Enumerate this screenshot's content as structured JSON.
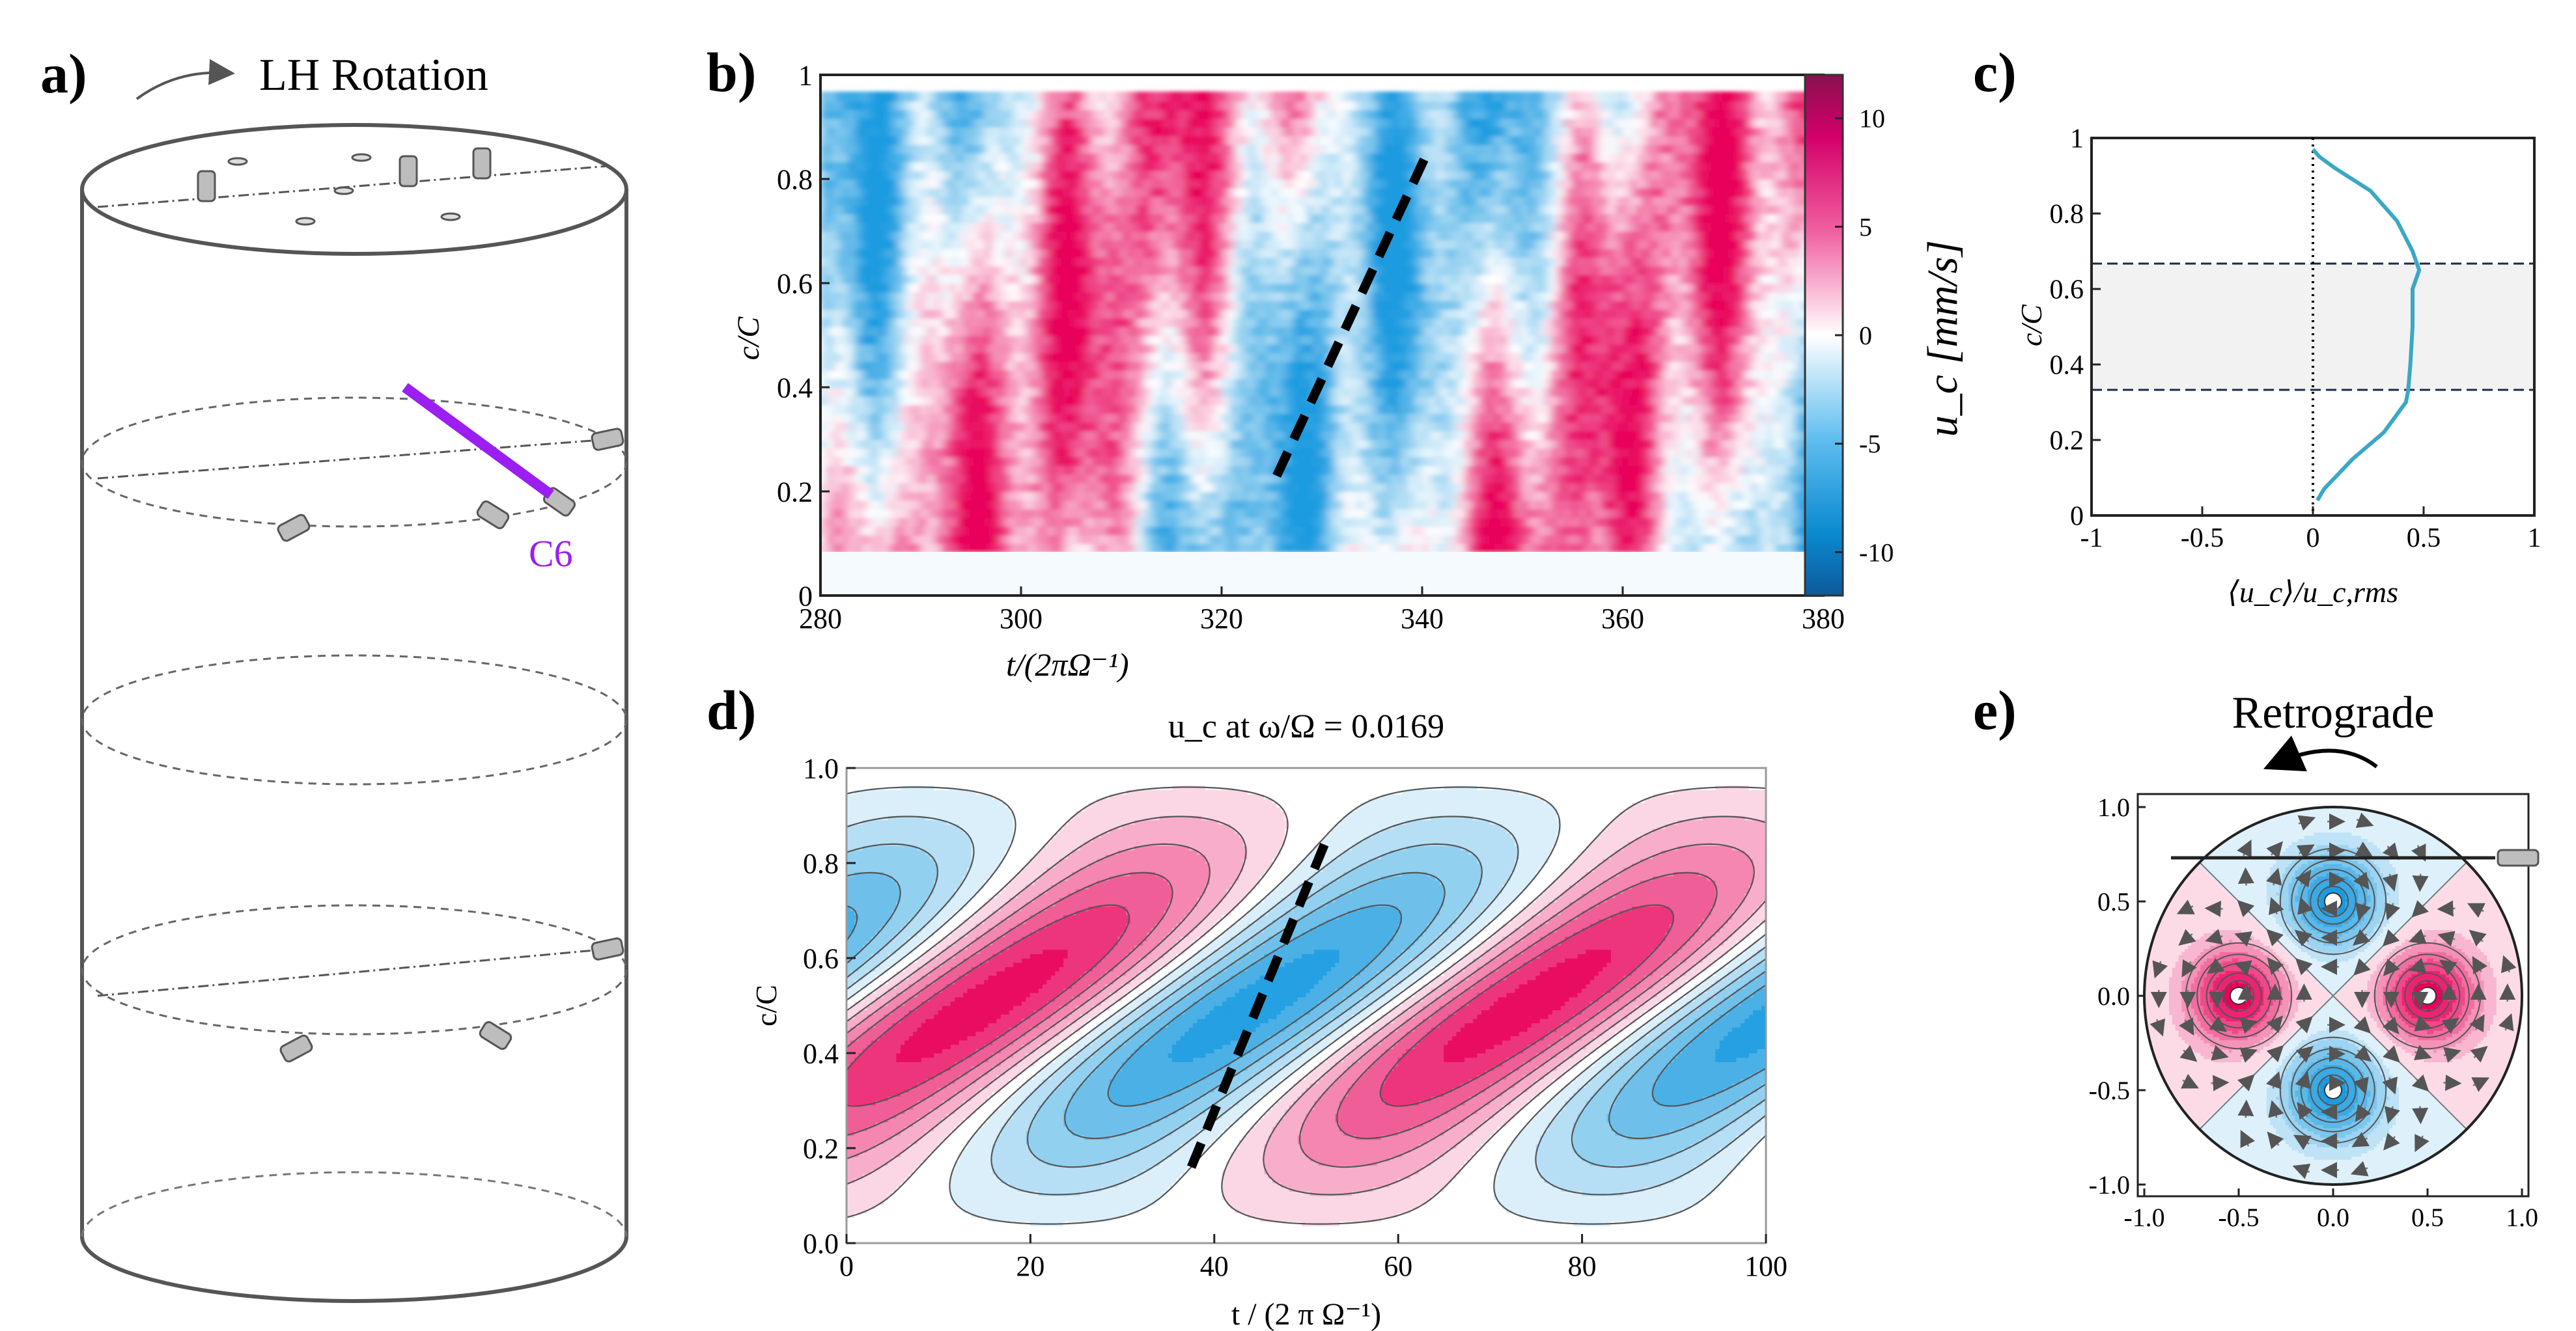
{
  "figure": {
    "panel_a": {
      "letter": "a)",
      "rotation_label": "LH Rotation",
      "probe_label": "C6"
    },
    "panel_b": {
      "letter": "b)",
      "ylabel": "c/C",
      "xlabel": "t/(2πΩ⁻¹)",
      "colorbar_label": "u_c [mm/s]",
      "colorbar_ticks": [
        "10",
        "5",
        "0",
        "-5",
        "-10"
      ]
    },
    "panel_c": {
      "letter": "c)",
      "ylabel": "c/C",
      "xlabel": "⟨u_c⟩/u_c,rms"
    },
    "panel_d": {
      "letter": "d)",
      "title": "u_c at ω/Ω = 0.0169",
      "ylabel": "c/C",
      "xlabel": "t / (2 π Ω⁻¹)"
    },
    "panel_e": {
      "letter": "e)",
      "title": "Retrograde"
    }
  },
  "colors": {
    "positive": "#e8005a",
    "negative": "#1a9be0",
    "probe": "#9b1ff0",
    "line": "#4a4a4a",
    "profile": "#3aa8c4"
  },
  "chart_data": [
    {
      "id": "b",
      "type": "heatmap",
      "x": {
        "label": "t/(2πΩ⁻¹)",
        "range": [
          280,
          380
        ],
        "ticks": [
          280,
          300,
          320,
          340,
          360,
          380
        ]
      },
      "y": {
        "label": "c/C",
        "range": [
          0,
          1
        ],
        "ticks": [
          0,
          0.2,
          0.4,
          0.6,
          0.8,
          1
        ]
      },
      "colorbar": {
        "label": "u_c [mm/s]",
        "range": [
          -12,
          12
        ],
        "ticks": [
          10,
          5,
          0,
          -5,
          -10
        ]
      },
      "annotation": {
        "type": "dashed-line",
        "from": [
          325.5,
          0.23
        ],
        "to": [
          340.5,
          0.85
        ]
      }
    },
    {
      "id": "c",
      "type": "line",
      "x": {
        "label": "⟨u_c⟩/u_c,rms",
        "range": [
          -1,
          1
        ],
        "ticks": [
          -1,
          -0.5,
          0,
          0.5,
          1
        ]
      },
      "y": {
        "label": "c/C",
        "range": [
          0,
          1
        ],
        "ticks": [
          0,
          0.2,
          0.4,
          0.6,
          0.8,
          1
        ]
      },
      "shaded_band": [
        0.333,
        0.667
      ],
      "series": [
        {
          "name": "profile",
          "points": [
            [
              0.02,
              0.04
            ],
            [
              0.05,
              0.07
            ],
            [
              0.18,
              0.15
            ],
            [
              0.32,
              0.22
            ],
            [
              0.42,
              0.3
            ],
            [
              0.43,
              0.33
            ],
            [
              0.44,
              0.4
            ],
            [
              0.45,
              0.5
            ],
            [
              0.45,
              0.6
            ],
            [
              0.48,
              0.65
            ],
            [
              0.45,
              0.7
            ],
            [
              0.38,
              0.78
            ],
            [
              0.26,
              0.86
            ],
            [
              0.1,
              0.92
            ],
            [
              0.03,
              0.95
            ],
            [
              0.0,
              0.97
            ]
          ]
        }
      ]
    },
    {
      "id": "d",
      "type": "heatmap",
      "title": "u_c at ω/Ω = 0.0169",
      "x": {
        "label": "t / (2 π Ω⁻¹)",
        "range": [
          0,
          100
        ],
        "ticks": [
          0,
          20,
          40,
          60,
          80,
          100
        ]
      },
      "y": {
        "label": "c/C",
        "range": [
          0,
          1
        ],
        "ticks": [
          0.0,
          0.2,
          0.4,
          0.6,
          0.8,
          1.0
        ]
      },
      "period": 59.2,
      "annotation": {
        "type": "dashed-line",
        "from": [
          37.5,
          0.16
        ],
        "to": [
          52.0,
          0.84
        ]
      }
    },
    {
      "id": "e",
      "type": "heatmap",
      "title": "Retrograde",
      "x": {
        "range": [
          -1,
          1
        ],
        "ticks": [
          -1.0,
          -0.5,
          0.0,
          0.5,
          1.0
        ]
      },
      "y": {
        "range": [
          -1,
          1
        ],
        "ticks": [
          -1.0,
          -0.5,
          0.0,
          0.5,
          1.0
        ]
      },
      "vortices": [
        {
          "x": -0.5,
          "y": 0,
          "sign": 1
        },
        {
          "x": 0.5,
          "y": 0,
          "sign": 1
        },
        {
          "x": 0,
          "y": 0.5,
          "sign": -1
        },
        {
          "x": 0,
          "y": -0.5,
          "sign": -1
        }
      ]
    }
  ]
}
